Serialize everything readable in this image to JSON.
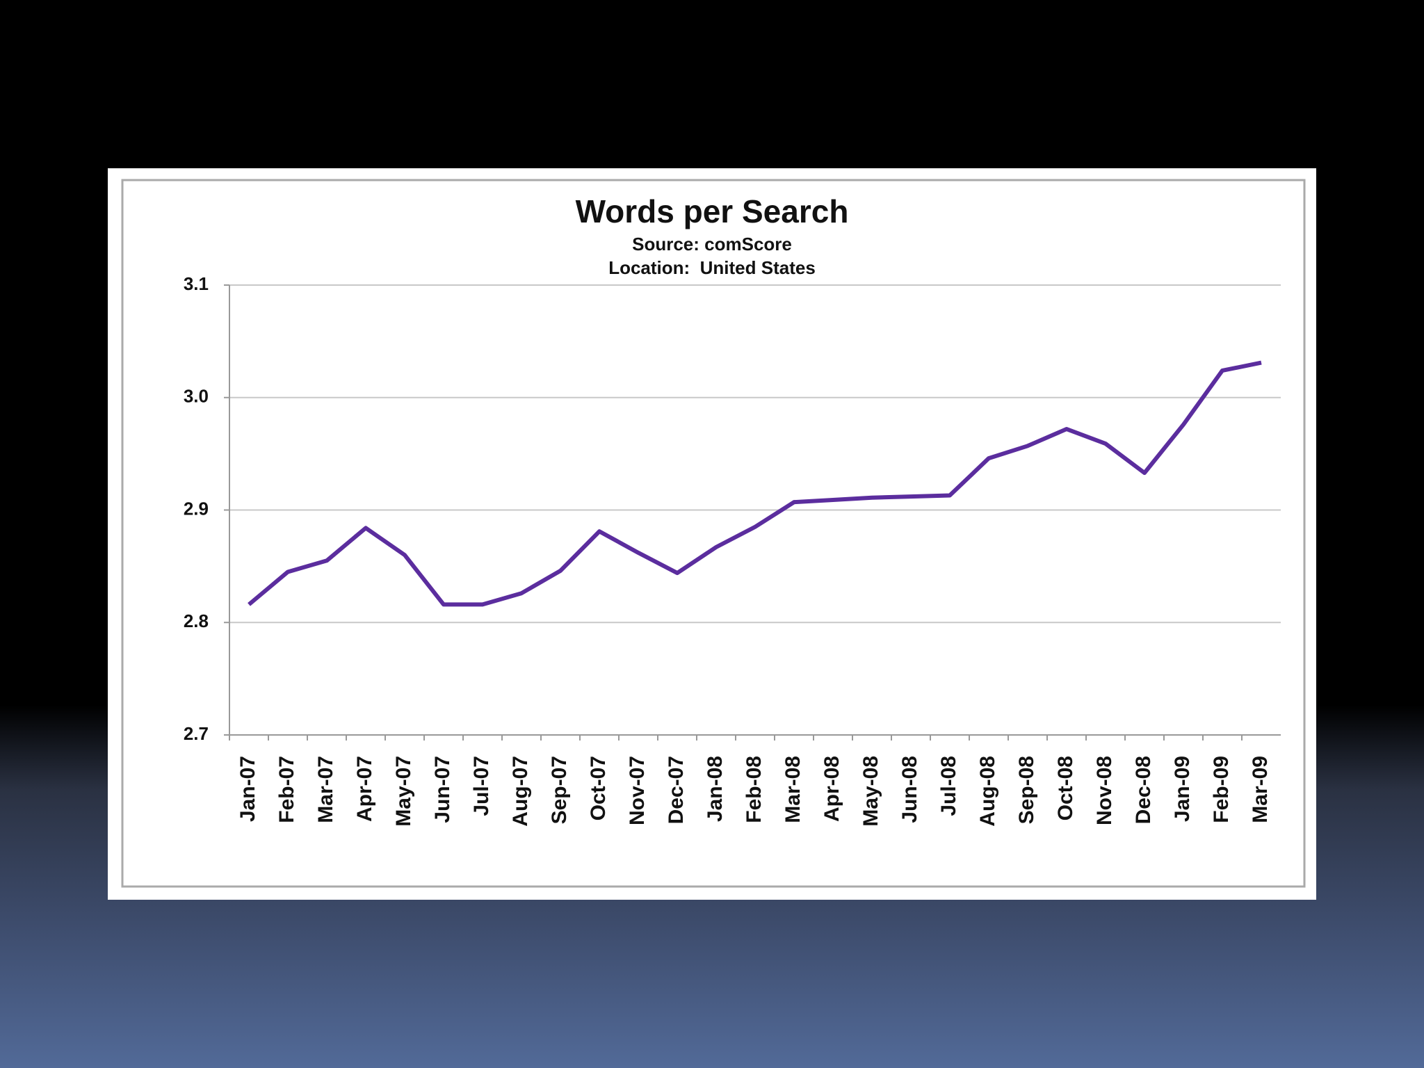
{
  "chart_data": {
    "type": "line",
    "title": "Words per Search",
    "subtitle": [
      "Source: comScore",
      "Location:  United States"
    ],
    "categories": [
      "Jan-07",
      "Feb-07",
      "Mar-07",
      "Apr-07",
      "May-07",
      "Jun-07",
      "Jul-07",
      "Aug-07",
      "Sep-07",
      "Oct-07",
      "Nov-07",
      "Dec-07",
      "Jan-08",
      "Feb-08",
      "Mar-08",
      "Apr-08",
      "May-08",
      "Jun-08",
      "Jul-08",
      "Aug-08",
      "Sep-08",
      "Oct-08",
      "Nov-08",
      "Dec-08",
      "Jan-09",
      "Feb-09",
      "Mar-09"
    ],
    "series": [
      {
        "color": "#5b2d9e",
        "values": [
          2.816,
          2.845,
          2.855,
          2.884,
          2.86,
          2.816,
          2.816,
          2.826,
          2.846,
          2.881,
          2.862,
          2.844,
          2.867,
          2.885,
          2.907,
          2.909,
          2.911,
          2.912,
          2.913,
          2.946,
          2.957,
          2.972,
          2.959,
          2.933,
          2.976,
          3.024,
          3.031
        ]
      }
    ],
    "ylim": [
      2.7,
      3.1
    ],
    "yticks": [
      2.7,
      2.8,
      2.9,
      {
        "value": 3,
        "label": "3.0"
      },
      3.1
    ],
    "grid": true
  }
}
